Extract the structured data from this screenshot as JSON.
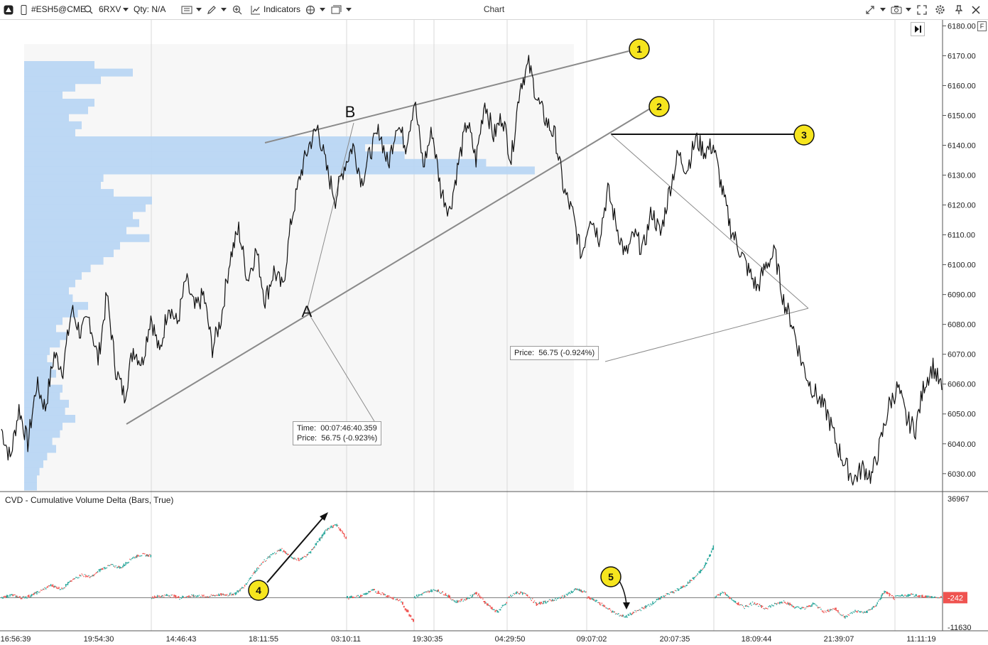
{
  "toolbar": {
    "symbol": "#ESH5@CME",
    "interval": "6RXV",
    "qty": "Qty: N/A",
    "indicators_label": "Indicators",
    "window_title": "Chart",
    "f_badge": "F"
  },
  "icons": [
    "app-logo-icon",
    "phone-icon",
    "search-icon",
    "candles-icon",
    "pencil-icon",
    "zoom-icon",
    "indicators-icon",
    "objects-icon",
    "templates-icon",
    "cursor-icon",
    "camera-icon",
    "fullscreen-icon",
    "gear-icon",
    "pin-icon",
    "close-icon",
    "scroll-to-end-icon"
  ],
  "colors": {
    "up": "#26a69a",
    "down": "#ef5350",
    "profile": "#b9d6f3",
    "marker": "#f6e51e",
    "price": "#111111"
  },
  "chart_data": [
    {
      "type": "line",
      "name": "price",
      "ylim": [
        6024,
        6182
      ],
      "y_ticks": [
        "6180.00",
        "6170.00",
        "6160.00",
        "6150.00",
        "6140.00",
        "6130.00",
        "6120.00",
        "6110.00",
        "6100.00",
        "6090.00",
        "6080.00",
        "6070.00",
        "6060.00",
        "6050.00",
        "6040.00",
        "6030.00"
      ],
      "x_ticks": [
        "16:56:39",
        "19:54:30",
        "14:46:43",
        "18:11:55",
        "03:10:11",
        "19:30:35",
        "04:29:50",
        "09:07:02",
        "20:07:35",
        "18:09:44",
        "21:39:07",
        "11:11:19"
      ],
      "values": [
        6045,
        6035,
        6052,
        6040,
        6060,
        6052,
        6070,
        6065,
        6085,
        6077,
        6082,
        6068,
        6090,
        6065,
        6056,
        6072,
        6067,
        6083,
        6070,
        6087,
        6080,
        6095,
        6085,
        6090,
        6072,
        6082,
        6102,
        6112,
        6095,
        6105,
        6088,
        6098,
        6092,
        6115,
        6130,
        6140,
        6146,
        6132,
        6122,
        6133,
        6140,
        6128,
        6138,
        6145,
        6133,
        6148,
        6140,
        6155,
        6133,
        6145,
        6125,
        6118,
        6134,
        6148,
        6135,
        6155,
        6143,
        6150,
        6135,
        6160,
        6167,
        6155,
        6148,
        6143,
        6125,
        6117,
        6103,
        6117,
        6109,
        6125,
        6113,
        6103,
        6110,
        6105,
        6118,
        6110,
        6125,
        6137,
        6132,
        6142,
        6138,
        6140,
        6125,
        6112,
        6105,
        6098,
        6092,
        6100,
        6104,
        6088,
        6080,
        6068,
        6060,
        6055,
        6050,
        6040,
        6033,
        6028,
        6032,
        6029,
        6040,
        6053,
        6059,
        6048,
        6045,
        6060,
        6066,
        6058
      ],
      "annotations": [
        {
          "text": "A",
          "type": "label"
        },
        {
          "text": "B",
          "type": "label"
        },
        {
          "text": "1",
          "type": "marker"
        },
        {
          "text": "2",
          "type": "marker"
        },
        {
          "text": "3",
          "type": "marker"
        }
      ],
      "tooltips": {
        "time_label": "Time:",
        "time_value": "00:07:46:40.359",
        "price_label": "Price:",
        "price_value_1": "56.75 (-0.923%)",
        "price_value_2": "56.75 (-0.924%)"
      },
      "volume_profile": [
        0.55,
        0.85,
        0.6,
        0.4,
        0.3,
        0.55,
        0.5,
        0.35,
        0.45,
        0.4,
        0.42,
        0.55,
        0.65,
        0.7,
        0.75,
        0.62,
        0.6,
        0.7,
        1.0,
        0.95,
        0.85,
        0.9,
        0.8,
        0.98,
        0.75,
        0.7,
        0.62,
        0.52,
        0.45,
        0.4,
        0.35,
        0.38,
        0.5,
        0.42,
        0.3,
        0.25,
        0.33,
        0.28,
        0.2,
        0.18,
        0.22,
        0.25,
        0.2,
        0.3,
        0.28,
        0.35,
        0.32,
        0.4,
        0.3,
        0.28,
        0.22,
        0.25,
        0.18,
        0.15,
        0.12,
        0.1,
        0.1
      ]
    },
    {
      "type": "bar",
      "title": "CVD - Cumulative Volume Delta (Bars, True)",
      "ylim": [
        -11630,
        36967
      ],
      "y_ticks": [
        "36967",
        "-11630"
      ],
      "last_value": "-242",
      "segments": [
        [
          -500,
          800,
          -300,
          600,
          2500,
          4500,
          3000,
          6000,
          8500,
          7500,
          10500,
          12000,
          11000,
          14500,
          16000,
          15500
        ],
        [
          -100,
          400,
          700,
          -200,
          300,
          500,
          200,
          800,
          900,
          1200,
          4000,
          9000,
          13000,
          16000,
          18000,
          15000,
          14000,
          16500,
          21000,
          26000,
          27000,
          22000
        ],
        [
          -200,
          300,
          2500,
          600,
          -1500,
          -9000
        ],
        [
          -100,
          1500,
          2800,
          1200,
          -1800,
          -800,
          1600,
          -2400,
          -5700,
          -2100
        ],
        [
          -400,
          1800,
          900,
          -2800,
          -1600,
          -800,
          800,
          3000,
          1600
        ],
        [
          -100,
          -1500,
          -3900,
          -6300,
          -7400,
          -5500,
          -3800,
          -1700,
          700,
          2100,
          4100,
          7200,
          11000,
          19000
        ],
        [
          -100,
          1700,
          -1600,
          -3800,
          -2000,
          -4300,
          -2900,
          -1500,
          -3800,
          -4300,
          -2500,
          -5600,
          -4200,
          -7700,
          -5200,
          -5900,
          -3700,
          2100,
          -600
        ],
        [
          -100,
          900,
          200,
          -300
        ]
      ]
    }
  ]
}
